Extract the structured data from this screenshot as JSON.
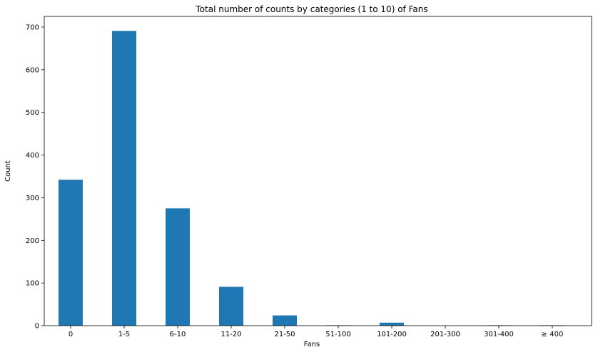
{
  "chart_data": {
    "type": "bar",
    "title": "Total number of counts by categories (1 to 10) of Fans",
    "xlabel": "Fans",
    "ylabel": "Count",
    "categories": [
      "0",
      "1-5",
      "6-10",
      "11-20",
      "21-50",
      "51-100",
      "101-200",
      "201-300",
      "301-400",
      "≥ 400"
    ],
    "values": [
      342,
      691,
      275,
      91,
      24,
      1,
      7,
      0,
      1,
      1
    ],
    "ylim": [
      0,
      725
    ],
    "yticks": [
      0,
      100,
      200,
      300,
      400,
      500,
      600,
      700
    ],
    "bar_color": "#1f77b4",
    "grid": false,
    "legend": "none"
  }
}
